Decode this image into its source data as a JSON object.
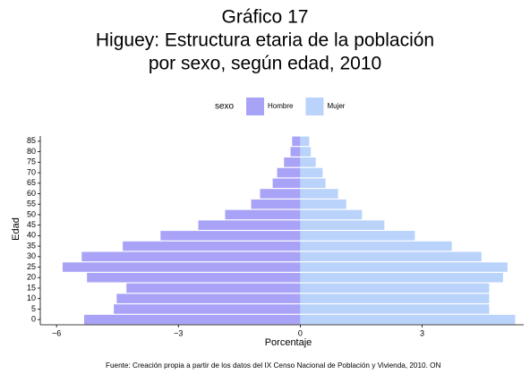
{
  "chart_data": {
    "type": "pyramid",
    "title": [
      "Gráfico 17",
      "Higuey: Estructura etaria de la población",
      "por sexo, según edad, 2010"
    ],
    "legend_title": "sexo",
    "x_label": "Porcentaje",
    "y_label": "Edad",
    "source": "Fuente: Creación propia a partir de los datos del IX Censo Nacional de Población y Vivienda, 2010. ON",
    "categories": [
      "0",
      "5",
      "10",
      "15",
      "20",
      "25",
      "30",
      "35",
      "40",
      "45",
      "50",
      "55",
      "60",
      "65",
      "70",
      "75",
      "80",
      "85"
    ],
    "series": [
      {
        "name": "Hombre",
        "color": "#a9a3f7",
        "values": [
          -5.32,
          -4.59,
          -4.52,
          -4.28,
          -5.25,
          -5.85,
          -5.38,
          -4.37,
          -3.44,
          -2.51,
          -1.85,
          -1.21,
          -0.99,
          -0.68,
          -0.57,
          -0.4,
          -0.24,
          -0.2
        ]
      },
      {
        "name": "Mujer",
        "color": "#bad3fb",
        "values": [
          5.29,
          4.65,
          4.65,
          4.65,
          4.99,
          5.1,
          4.46,
          3.73,
          2.82,
          2.07,
          1.52,
          1.13,
          0.93,
          0.62,
          0.55,
          0.38,
          0.26,
          0.22
        ]
      }
    ],
    "xlim": [
      -6.4,
      5.5
    ],
    "xticks": [
      {
        "value": -6,
        "label": "−6"
      },
      {
        "value": -3,
        "label": "−3"
      },
      0,
      3
    ],
    "legend": "top"
  }
}
